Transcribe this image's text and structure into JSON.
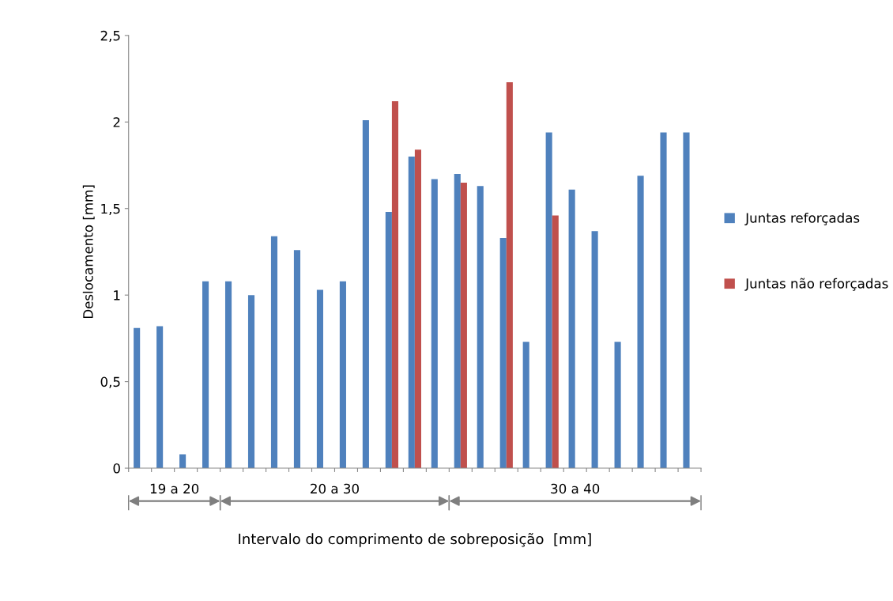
{
  "chart_data": {
    "type": "bar",
    "ylabel": "Deslocamento [mm]",
    "xlabel": "Intervalo do comprimento de sobreposição  [mm]",
    "categories": [
      null,
      null,
      null,
      null,
      null,
      null,
      null,
      null,
      null,
      null,
      null,
      null,
      null,
      null,
      null,
      null,
      null,
      null,
      null,
      null,
      null,
      null,
      null,
      null,
      null
    ],
    "series": [
      {
        "name": "Juntas reforçadas",
        "color": "#4f81bd",
        "values": [
          0.81,
          0.82,
          0.08,
          1.08,
          1.08,
          1.0,
          1.34,
          1.26,
          1.03,
          1.08,
          2.01,
          1.48,
          1.8,
          1.67,
          1.7,
          1.63,
          1.33,
          0.73,
          1.94,
          1.61,
          1.37,
          0.73,
          1.69,
          1.94,
          1.94
        ]
      },
      {
        "name": "Juntas não reforçadas",
        "color": "#c0504d",
        "values": [
          null,
          null,
          null,
          null,
          null,
          null,
          null,
          null,
          null,
          null,
          null,
          2.12,
          1.84,
          null,
          1.65,
          null,
          2.23,
          null,
          1.46,
          null,
          null,
          null,
          null,
          null,
          null
        ]
      }
    ],
    "ylim": [
      0,
      2.5
    ],
    "yticks": [
      0,
      {
        "value": 0.5,
        "label": "0,5"
      },
      1,
      {
        "value": 1.5,
        "label": "1,5"
      },
      2,
      {
        "value": 2.5,
        "label": "2,5"
      }
    ],
    "annotations": [
      "19 a 20",
      "20 a 30",
      "30 a 40"
    ],
    "legend": "right",
    "grid": false
  }
}
